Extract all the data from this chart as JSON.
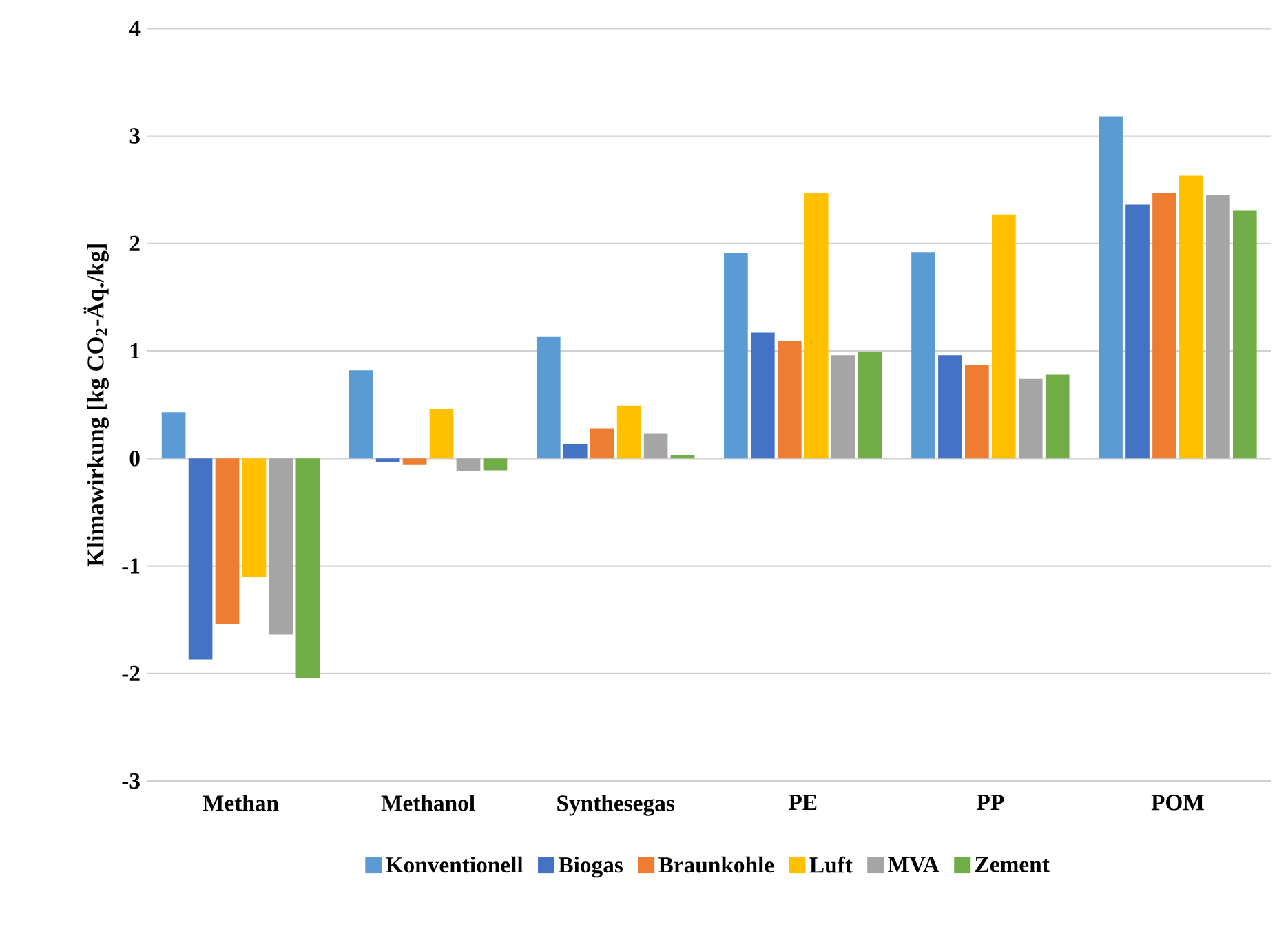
{
  "chart_data": {
    "type": "bar",
    "ylabel": "Klimawirkung [kg CO$_{2}$-Äq./kg]",
    "categories": [
      "Methan",
      "Methanol",
      "Synthesegas",
      "PE",
      "PP",
      "POM"
    ],
    "series": [
      {
        "name": "Konventionell",
        "color": "#5b9bd5",
        "values": [
          0.43,
          0.82,
          1.13,
          1.91,
          1.92,
          3.18
        ]
      },
      {
        "name": "Biogas",
        "color": "#4472c4",
        "values": [
          -1.87,
          -0.03,
          0.13,
          1.17,
          0.96,
          2.36
        ]
      },
      {
        "name": "Braunkohle",
        "color": "#ed7d31",
        "values": [
          -1.54,
          -0.06,
          0.28,
          1.09,
          0.87,
          2.47
        ]
      },
      {
        "name": "Luft",
        "color": "#ffc000",
        "values": [
          -1.1,
          0.46,
          0.49,
          2.47,
          2.27,
          2.63
        ]
      },
      {
        "name": "MVA",
        "color": "#a5a5a5",
        "values": [
          -1.64,
          -0.12,
          0.23,
          0.96,
          0.74,
          2.45
        ]
      },
      {
        "name": "Zement",
        "color": "#70ad47",
        "values": [
          -2.04,
          -0.11,
          0.03,
          0.99,
          0.78,
          2.31
        ]
      }
    ],
    "ylim": [
      -3,
      4
    ],
    "yticks": [
      -3,
      -2,
      -1,
      0,
      1,
      2,
      3,
      4
    ],
    "grid": "y",
    "legend": "bottom"
  }
}
